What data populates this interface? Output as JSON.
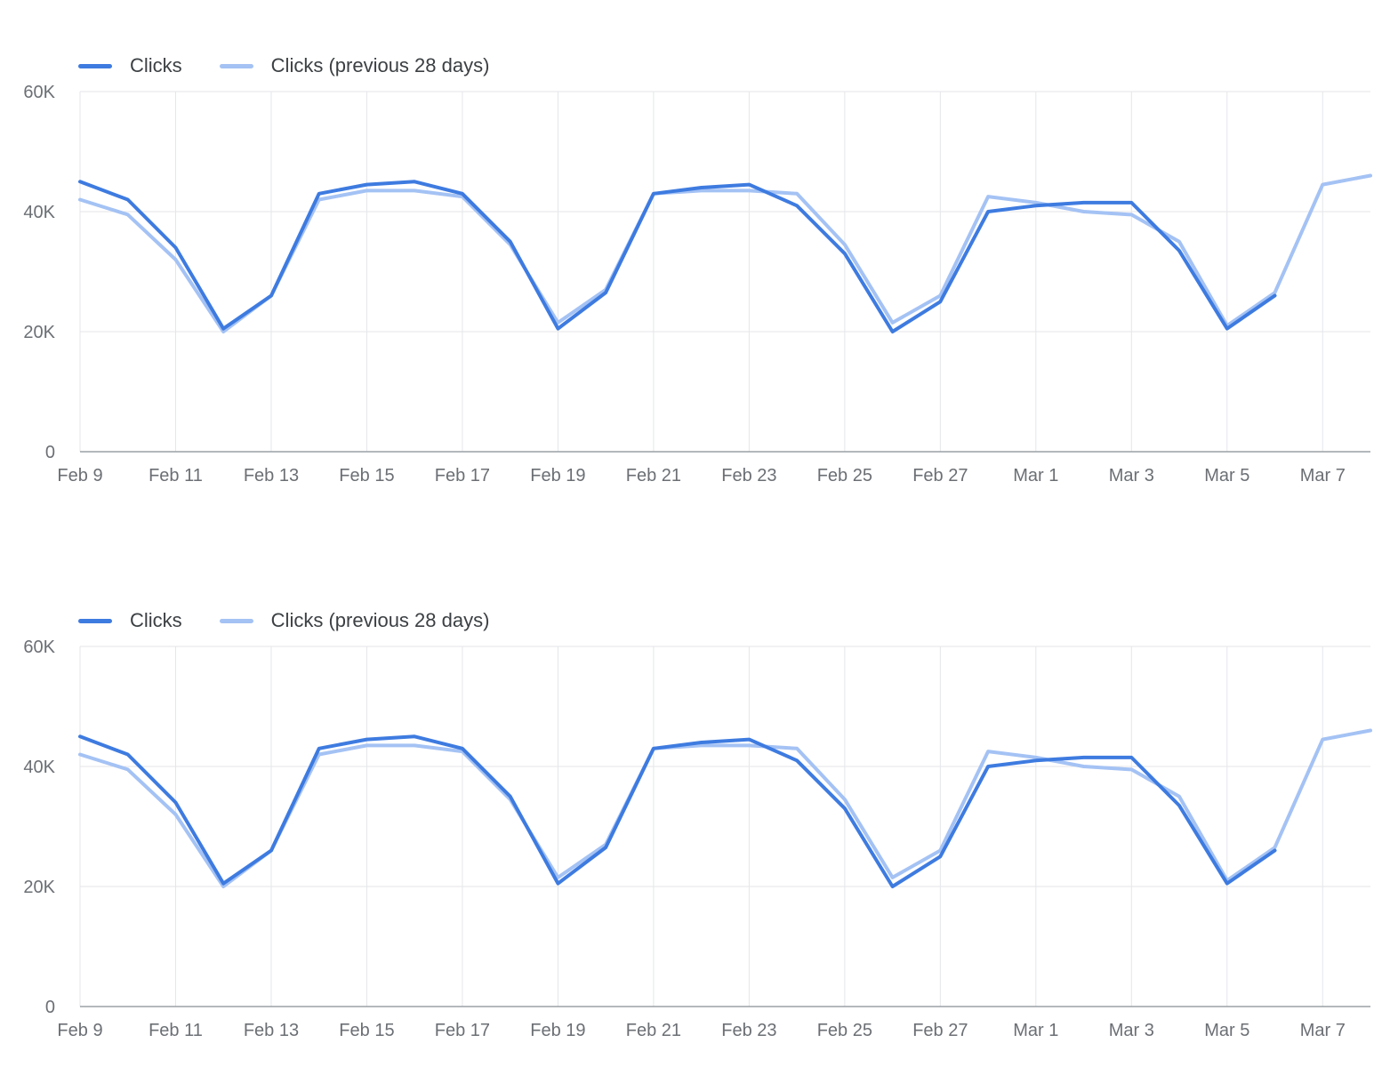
{
  "page": {
    "background_color": "#ffffff"
  },
  "chart_data": [
    {
      "type": "line",
      "title": "",
      "xlabel": "",
      "ylabel": "",
      "grid": true,
      "legend_position": "top-left",
      "ylim": [
        0,
        60000
      ],
      "yticks": [
        0,
        20000,
        40000,
        60000
      ],
      "ytick_labels": [
        "0",
        "20K",
        "40K",
        "60K"
      ],
      "categories": [
        "Feb 9",
        "Feb 10",
        "Feb 11",
        "Feb 12",
        "Feb 13",
        "Feb 14",
        "Feb 15",
        "Feb 16",
        "Feb 17",
        "Feb 18",
        "Feb 19",
        "Feb 20",
        "Feb 21",
        "Feb 22",
        "Feb 23",
        "Feb 24",
        "Feb 25",
        "Feb 26",
        "Feb 27",
        "Feb 28",
        "Mar 1",
        "Mar 2",
        "Mar 3",
        "Mar 4",
        "Mar 5",
        "Mar 6",
        "Mar 7",
        "Mar 8"
      ],
      "x_tick_labels": [
        "Feb 9",
        "Feb 11",
        "Feb 13",
        "Feb 15",
        "Feb 17",
        "Feb 19",
        "Feb 21",
        "Feb 23",
        "Feb 25",
        "Feb 27",
        "Mar 1",
        "Mar 3",
        "Mar 5",
        "Mar 7"
      ],
      "series": [
        {
          "name": "Clicks",
          "color": "#3e7be0",
          "values": [
            45000,
            42000,
            34000,
            20500,
            26000,
            43000,
            44500,
            45000,
            43000,
            35000,
            20500,
            26500,
            43000,
            44000,
            44500,
            41000,
            33000,
            20000,
            25000,
            40000,
            41000,
            41500,
            41500,
            33500,
            20500,
            26000,
            null,
            null
          ]
        },
        {
          "name": "Clicks (previous 28 days)",
          "color": "#a4c2f4",
          "values": [
            42000,
            39500,
            32000,
            20000,
            26000,
            42000,
            43500,
            43500,
            42500,
            34500,
            21500,
            27000,
            43000,
            43500,
            43500,
            43000,
            34500,
            21500,
            26000,
            42500,
            41500,
            40000,
            39500,
            35000,
            21000,
            26500,
            44500,
            46000
          ]
        }
      ]
    },
    {
      "type": "line",
      "title": "",
      "xlabel": "",
      "ylabel": "",
      "grid": true,
      "legend_position": "top-left",
      "ylim": [
        0,
        60000
      ],
      "yticks": [
        0,
        20000,
        40000,
        60000
      ],
      "ytick_labels": [
        "0",
        "20K",
        "40K",
        "60K"
      ],
      "categories": [
        "Feb 9",
        "Feb 10",
        "Feb 11",
        "Feb 12",
        "Feb 13",
        "Feb 14",
        "Feb 15",
        "Feb 16",
        "Feb 17",
        "Feb 18",
        "Feb 19",
        "Feb 20",
        "Feb 21",
        "Feb 22",
        "Feb 23",
        "Feb 24",
        "Feb 25",
        "Feb 26",
        "Feb 27",
        "Feb 28",
        "Mar 1",
        "Mar 2",
        "Mar 3",
        "Mar 4",
        "Mar 5",
        "Mar 6",
        "Mar 7",
        "Mar 8"
      ],
      "x_tick_labels": [
        "Feb 9",
        "Feb 11",
        "Feb 13",
        "Feb 15",
        "Feb 17",
        "Feb 19",
        "Feb 21",
        "Feb 23",
        "Feb 25",
        "Feb 27",
        "Mar 1",
        "Mar 3",
        "Mar 5",
        "Mar 7"
      ],
      "series": [
        {
          "name": "Clicks",
          "color": "#3e7be0",
          "values": [
            45000,
            42000,
            34000,
            20500,
            26000,
            43000,
            44500,
            45000,
            43000,
            35000,
            20500,
            26500,
            43000,
            44000,
            44500,
            41000,
            33000,
            20000,
            25000,
            40000,
            41000,
            41500,
            41500,
            33500,
            20500,
            26000,
            null,
            null
          ]
        },
        {
          "name": "Clicks (previous 28 days)",
          "color": "#a4c2f4",
          "values": [
            42000,
            39500,
            32000,
            20000,
            26000,
            42000,
            43500,
            43500,
            42500,
            34500,
            21500,
            27000,
            43000,
            43500,
            43500,
            43000,
            34500,
            21500,
            26000,
            42500,
            41500,
            40000,
            39500,
            35000,
            21000,
            26500,
            44500,
            46000
          ]
        }
      ]
    }
  ]
}
